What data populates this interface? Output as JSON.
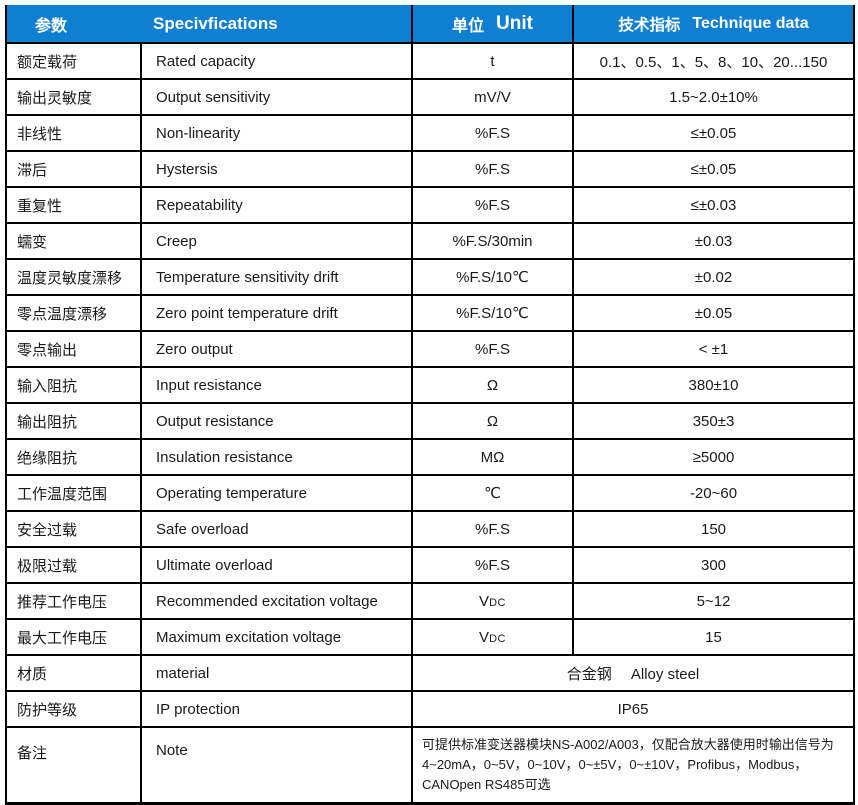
{
  "colors": {
    "header_bg": "#0e7fd1",
    "header_text": "#ffffff",
    "body_text": "#1a1a1a",
    "border": "#000000"
  },
  "header": {
    "param_zh": "参数",
    "spec_en": "Specivfications",
    "unit_zh": "单位",
    "unit_en": "Unit",
    "data_zh": "技术指标",
    "data_en": "Technique data"
  },
  "rows": [
    {
      "zh": "额定载荷",
      "en": "Rated capacity",
      "unit": "t",
      "value": "0.1、0.5、1、5、8、10、20...150"
    },
    {
      "zh": "输出灵敏度",
      "en": "Output sensitivity",
      "unit": "mV/V",
      "value": "1.5~2.0±10%"
    },
    {
      "zh": "非线性",
      "en": "Non-linearity",
      "unit": "%F.S",
      "value": "≤±0.05"
    },
    {
      "zh": "滞后",
      "en": "Hystersis",
      "unit": "%F.S",
      "value": "≤±0.05"
    },
    {
      "zh": "重复性",
      "en": "Repeatability",
      "unit": "%F.S",
      "value": "≤±0.03"
    },
    {
      "zh": "蠕变",
      "en": "Creep",
      "unit": "%F.S/30min",
      "value": "±0.03"
    },
    {
      "zh": "温度灵敏度漂移",
      "en": "Temperature sensitivity drift",
      "unit": "%F.S/10℃",
      "value": "±0.02"
    },
    {
      "zh": "零点温度漂移",
      "en": "Zero point temperature drift",
      "unit": "%F.S/10℃",
      "value": "±0.05"
    },
    {
      "zh": "零点输出",
      "en": "Zero output",
      "unit": "%F.S",
      "value": "< ±1"
    },
    {
      "zh": "输入阻抗",
      "en": "Input resistance",
      "unit": "Ω",
      "value": "380±10"
    },
    {
      "zh": "输出阻抗",
      "en": "Output resistance",
      "unit": "Ω",
      "value": "350±3"
    },
    {
      "zh": "绝缘阻抗",
      "en": "Insulation resistance",
      "unit": "MΩ",
      "value": "≥5000"
    },
    {
      "zh": "工作温度范围",
      "en": "Operating temperature",
      "unit": "℃",
      "value": "-20~60"
    },
    {
      "zh": "安全过载",
      "en": "Safe overload",
      "unit": "%F.S",
      "value": "150"
    },
    {
      "zh": "极限过载",
      "en": "Ultimate overload",
      "unit": "%F.S",
      "value": "300"
    },
    {
      "zh": "推荐工作电压",
      "en": "Recommended excitation voltage",
      "unit": "V",
      "unit_sub": "DC",
      "value": "5~12"
    },
    {
      "zh": "最大工作电压",
      "en": "Maximum excitation voltage",
      "unit": "V",
      "unit_sub": "DC",
      "value": "15"
    },
    {
      "zh": "材质",
      "en": "material",
      "merged": true,
      "value": "合金钢　 Alloy steel"
    },
    {
      "zh": "防护等级",
      "en": "IP protection",
      "merged": true,
      "value": "IP65"
    },
    {
      "zh": "备注",
      "en": "Note",
      "merged": true,
      "tall": true,
      "value_align": "left",
      "value_small": true,
      "value": "可提供标准变送器模块NS-A002/A003，仅配合放大器使用时输出信号为4~20mA，0~5V，0~10V，0~±5V，0~±10V，Profibus，Modbus，CANOpen RS485可选"
    }
  ]
}
